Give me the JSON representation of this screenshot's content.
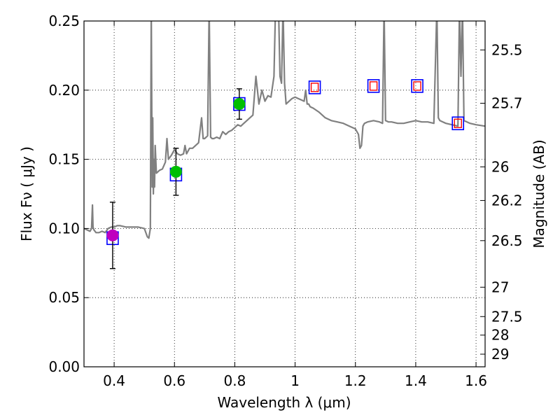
{
  "chart_data": {
    "type": "scatter",
    "xlabel": "Wavelength  λ (μm)",
    "ylabel": "Flux  Fν  ( μJy )",
    "y2label": "Magnitude (AB)",
    "xlim": [
      0.3,
      1.63
    ],
    "ylim": [
      0.0,
      0.25
    ],
    "grid": true,
    "x_ticks": [
      0.4,
      0.6,
      0.8,
      1.0,
      1.2,
      1.4,
      1.6
    ],
    "x_tick_labels": [
      "0.4",
      "0.6",
      "0.8",
      "1",
      "1.2",
      "1.4",
      "1.6"
    ],
    "y_ticks": [
      0.0,
      0.05,
      0.1,
      0.15,
      0.2,
      0.25
    ],
    "y_tick_labels": [
      "0.00",
      "0.05",
      "0.10",
      "0.15",
      "0.20",
      "0.25"
    ],
    "mag_ticks": [
      25.5,
      25.7,
      26,
      26.2,
      26.5,
      27,
      27.5,
      28,
      29
    ],
    "mag_tick_labels": [
      "25.5",
      "25.7",
      "26",
      "26.2",
      "26.5",
      "27",
      "27.5",
      "28",
      "29"
    ],
    "series": [
      {
        "kind": "line",
        "color": "#808080",
        "x": [
          0.3,
          0.31,
          0.32,
          0.325,
          0.328,
          0.33,
          0.333,
          0.34,
          0.35,
          0.36,
          0.37,
          0.38,
          0.39,
          0.4,
          0.41,
          0.42,
          0.44,
          0.46,
          0.48,
          0.5,
          0.51,
          0.515,
          0.52,
          0.523,
          0.526,
          0.528,
          0.53,
          0.532,
          0.534,
          0.536,
          0.54,
          0.55,
          0.56,
          0.57,
          0.575,
          0.58,
          0.59,
          0.6,
          0.61,
          0.62,
          0.63,
          0.635,
          0.64,
          0.65,
          0.66,
          0.68,
          0.69,
          0.695,
          0.7,
          0.705,
          0.71,
          0.715,
          0.72,
          0.725,
          0.73,
          0.74,
          0.75,
          0.76,
          0.77,
          0.78,
          0.79,
          0.8,
          0.81,
          0.82,
          0.83,
          0.84,
          0.85,
          0.86,
          0.87,
          0.88,
          0.89,
          0.9,
          0.91,
          0.92,
          0.93,
          0.935,
          0.94,
          0.945,
          0.95,
          0.955,
          0.96,
          0.965,
          0.97,
          0.98,
          0.99,
          1.0,
          1.01,
          1.02,
          1.03,
          1.035,
          1.04,
          1.045,
          1.05,
          1.06,
          1.08,
          1.1,
          1.12,
          1.14,
          1.16,
          1.18,
          1.2,
          1.21,
          1.215,
          1.22,
          1.225,
          1.23,
          1.24,
          1.26,
          1.28,
          1.29,
          1.295,
          1.3,
          1.31,
          1.32,
          1.34,
          1.36,
          1.38,
          1.4,
          1.42,
          1.44,
          1.46,
          1.47,
          1.475,
          1.48,
          1.49,
          1.5,
          1.52,
          1.54,
          1.545,
          1.55,
          1.555,
          1.56,
          1.58,
          1.6,
          1.63
        ],
        "y": [
          0.1,
          0.099,
          0.098,
          0.1,
          0.117,
          0.101,
          0.099,
          0.097,
          0.097,
          0.098,
          0.097,
          0.1,
          0.101,
          0.101,
          0.102,
          0.102,
          0.101,
          0.101,
          0.101,
          0.1,
          0.094,
          0.093,
          0.1,
          0.26,
          0.13,
          0.18,
          0.125,
          0.15,
          0.13,
          0.16,
          0.14,
          0.142,
          0.143,
          0.148,
          0.165,
          0.15,
          0.153,
          0.157,
          0.154,
          0.153,
          0.154,
          0.16,
          0.154,
          0.158,
          0.158,
          0.162,
          0.18,
          0.165,
          0.165,
          0.166,
          0.167,
          0.26,
          0.166,
          0.165,
          0.165,
          0.166,
          0.165,
          0.17,
          0.168,
          0.17,
          0.171,
          0.173,
          0.175,
          0.174,
          0.176,
          0.178,
          0.18,
          0.182,
          0.21,
          0.19,
          0.2,
          0.192,
          0.196,
          0.195,
          0.21,
          0.26,
          0.26,
          0.26,
          0.21,
          0.205,
          0.26,
          0.205,
          0.19,
          0.192,
          0.194,
          0.195,
          0.194,
          0.193,
          0.192,
          0.2,
          0.19,
          0.19,
          0.188,
          0.187,
          0.184,
          0.18,
          0.178,
          0.177,
          0.176,
          0.174,
          0.172,
          0.168,
          0.158,
          0.16,
          0.174,
          0.176,
          0.177,
          0.178,
          0.177,
          0.176,
          0.26,
          0.178,
          0.177,
          0.177,
          0.176,
          0.176,
          0.177,
          0.178,
          0.177,
          0.177,
          0.176,
          0.26,
          0.18,
          0.178,
          0.177,
          0.176,
          0.175,
          0.174,
          0.26,
          0.21,
          0.26,
          0.178,
          0.176,
          0.175,
          0.174
        ]
      },
      {
        "name": "",
        "kind": "points-with-errorbars",
        "points": [
          {
            "x": 0.395,
            "y": 0.095,
            "err": 0.024,
            "color": "#bf00bf"
          },
          {
            "x": 0.605,
            "y": 0.141,
            "err": 0.017,
            "color": "#00bf00"
          },
          {
            "x": 0.815,
            "y": 0.19,
            "err": 0.011,
            "color": "#00bf00"
          }
        ]
      },
      {
        "name": "",
        "kind": "model-boxes-blue",
        "color": "#0000ff",
        "points": [
          {
            "x": 0.395,
            "y": 0.093
          },
          {
            "x": 0.605,
            "y": 0.139
          },
          {
            "x": 0.815,
            "y": 0.19
          },
          {
            "x": 1.065,
            "y": 0.202
          },
          {
            "x": 1.26,
            "y": 0.203
          },
          {
            "x": 1.405,
            "y": 0.203
          },
          {
            "x": 1.54,
            "y": 0.176
          }
        ]
      },
      {
        "name": "",
        "kind": "model-boxes-red",
        "color": "#ff0000",
        "points": [
          {
            "x": 1.065,
            "y": 0.202
          },
          {
            "x": 1.26,
            "y": 0.203
          },
          {
            "x": 1.405,
            "y": 0.203
          },
          {
            "x": 1.54,
            "y": 0.176
          }
        ]
      }
    ]
  }
}
